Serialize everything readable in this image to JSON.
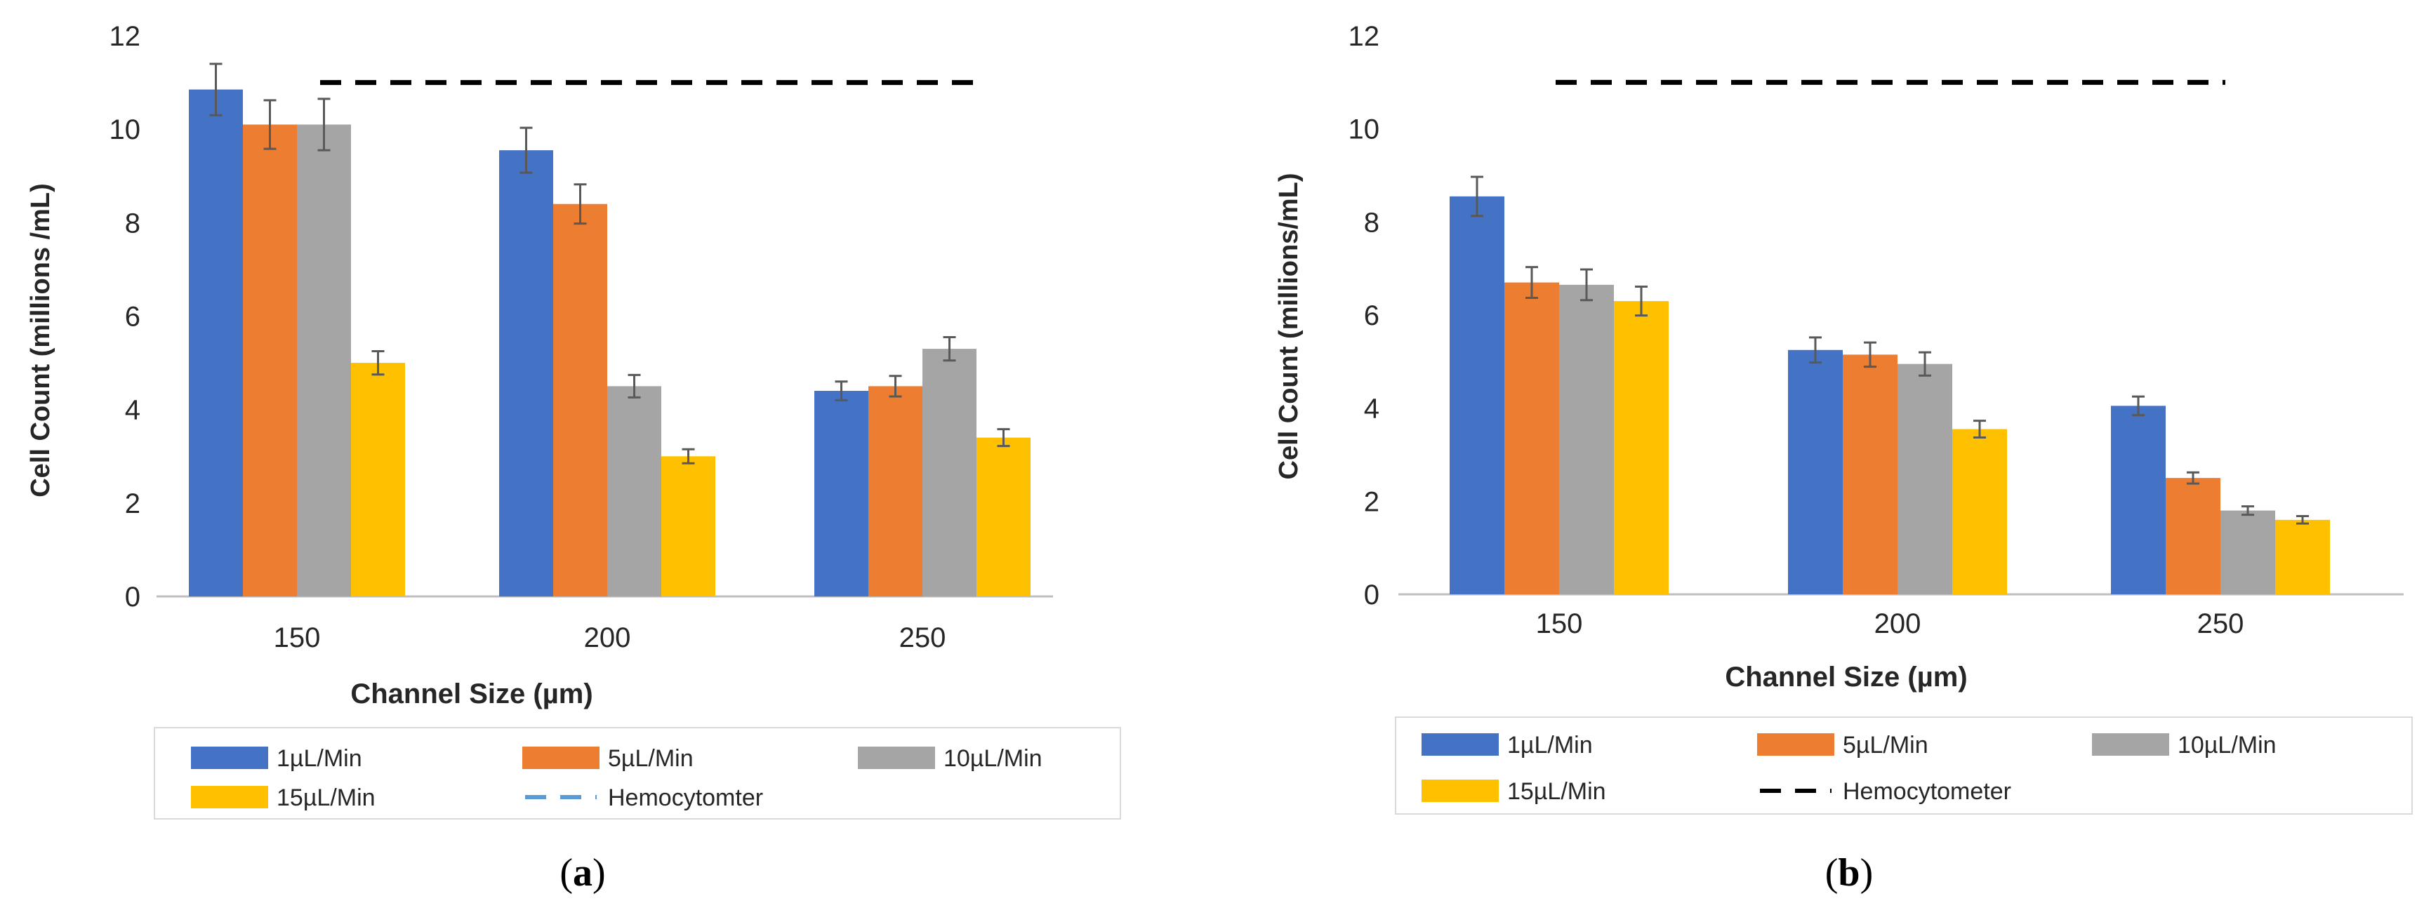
{
  "chart_data": [
    {
      "id": "a",
      "type": "bar",
      "caption_letter": "a",
      "xlabel": "Channel Size (µm)",
      "ylabel": "Cell Count (millions /mL)",
      "ylim": [
        0,
        12
      ],
      "yticks": [
        "0",
        "2",
        "4",
        "6",
        "8",
        "10",
        "12"
      ],
      "categories": [
        "150",
        "200",
        "250"
      ],
      "series": [
        {
          "name": "1µL/Min",
          "color": "#4472C4",
          "values": [
            10.85,
            9.55,
            4.4
          ],
          "errors": [
            0.55,
            0.48,
            0.2
          ]
        },
        {
          "name": "5µL/Min",
          "color": "#ED7D31",
          "values": [
            10.1,
            8.4,
            4.5
          ],
          "errors": [
            0.52,
            0.42,
            0.22
          ]
        },
        {
          "name": "10µL/Min",
          "color": "#A5A5A5",
          "values": [
            10.1,
            4.5,
            5.3
          ],
          "errors": [
            0.55,
            0.24,
            0.25
          ]
        },
        {
          "name": "15µL/Min",
          "color": "#FFC000",
          "values": [
            5.0,
            3.0,
            3.4
          ],
          "errors": [
            0.25,
            0.15,
            0.18
          ]
        }
      ],
      "reference_line": {
        "name": "Hemocytomter",
        "value": 11.0,
        "color": "#000000",
        "legend_color": "#5B9BD5"
      }
    },
    {
      "id": "b",
      "type": "bar",
      "caption_letter": "b",
      "xlabel": "Channel Size (µm)",
      "ylabel": "Cell Count (millions/mL)",
      "ylim": [
        0,
        12
      ],
      "yticks": [
        "0",
        "2",
        "4",
        "6",
        "8",
        "10",
        "12"
      ],
      "categories": [
        "150",
        "200",
        "250"
      ],
      "series": [
        {
          "name": "1µL/Min",
          "color": "#4472C4",
          "values": [
            8.55,
            5.25,
            4.05
          ],
          "errors": [
            0.42,
            0.27,
            0.2
          ]
        },
        {
          "name": "5µL/Min",
          "color": "#ED7D31",
          "values": [
            6.7,
            5.15,
            2.5
          ],
          "errors": [
            0.33,
            0.26,
            0.12
          ]
        },
        {
          "name": "10µL/Min",
          "color": "#A5A5A5",
          "values": [
            6.65,
            4.95,
            1.8
          ],
          "errors": [
            0.33,
            0.25,
            0.09
          ]
        },
        {
          "name": "15µL/Min",
          "color": "#FFC000",
          "values": [
            6.3,
            3.55,
            1.6
          ],
          "errors": [
            0.31,
            0.18,
            0.08
          ]
        }
      ],
      "reference_line": {
        "name": "Hemocytometer",
        "value": 11.0,
        "color": "#000000",
        "legend_color": "#000000"
      }
    }
  ]
}
